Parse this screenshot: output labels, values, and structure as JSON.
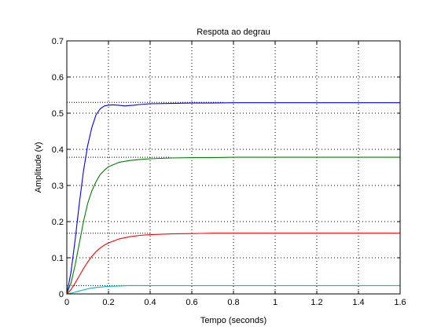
{
  "chart_data": {
    "type": "line",
    "title": "Respota ao degrau",
    "xlabel": "Tempo (seconds)",
    "ylabel": "Amplitude (v)",
    "xlim": [
      0,
      1.6
    ],
    "ylim": [
      0,
      0.7
    ],
    "xticks": [
      "0",
      "0.2",
      "0.4",
      "0.6",
      "0.8",
      "1",
      "1.2",
      "1.4",
      "1.6"
    ],
    "yticks": [
      "0",
      "0.1",
      "0.2",
      "0.3",
      "0.4",
      "0.5",
      "0.6",
      "0.7"
    ],
    "grid": true,
    "series": [
      {
        "color": "#0000ff",
        "x": [
          0,
          0.02,
          0.04,
          0.06,
          0.08,
          0.1,
          0.12,
          0.14,
          0.16,
          0.18,
          0.2,
          0.22,
          0.25,
          0.28,
          0.3,
          0.32,
          0.35,
          0.4,
          0.5,
          0.6,
          0.7,
          0.8,
          1.0,
          1.2,
          1.4,
          1.6
        ],
        "y": [
          0,
          0.06,
          0.15,
          0.25,
          0.34,
          0.41,
          0.46,
          0.495,
          0.512,
          0.52,
          0.522,
          0.523,
          0.522,
          0.52,
          0.521,
          0.522,
          0.524,
          0.526,
          0.527,
          0.528,
          0.528,
          0.529,
          0.529,
          0.529,
          0.529,
          0.529
        ]
      },
      {
        "color": "#008000",
        "x": [
          0,
          0.02,
          0.04,
          0.06,
          0.08,
          0.1,
          0.12,
          0.14,
          0.16,
          0.18,
          0.2,
          0.25,
          0.3,
          0.35,
          0.4,
          0.45,
          0.5,
          0.6,
          0.7,
          0.8,
          1.0,
          1.2,
          1.4,
          1.6
        ],
        "y": [
          0,
          0.03,
          0.08,
          0.14,
          0.2,
          0.25,
          0.285,
          0.31,
          0.33,
          0.342,
          0.352,
          0.364,
          0.369,
          0.372,
          0.374,
          0.375,
          0.376,
          0.377,
          0.377,
          0.378,
          0.378,
          0.378,
          0.378,
          0.378
        ]
      },
      {
        "color": "#ff0000",
        "x": [
          0,
          0.02,
          0.04,
          0.06,
          0.08,
          0.1,
          0.12,
          0.14,
          0.16,
          0.18,
          0.2,
          0.25,
          0.3,
          0.35,
          0.4,
          0.5,
          0.6,
          0.7,
          0.8,
          1.0,
          1.2,
          1.4,
          1.6
        ],
        "y": [
          0,
          0.012,
          0.03,
          0.05,
          0.07,
          0.088,
          0.104,
          0.117,
          0.127,
          0.135,
          0.141,
          0.152,
          0.158,
          0.162,
          0.164,
          0.166,
          0.167,
          0.168,
          0.168,
          0.168,
          0.168,
          0.168,
          0.168
        ]
      },
      {
        "color": "#00bfbf",
        "x": [
          0,
          0.02,
          0.04,
          0.06,
          0.08,
          0.1,
          0.12,
          0.14,
          0.16,
          0.18,
          0.2,
          0.25,
          0.3,
          0.4,
          0.5,
          0.6,
          0.8,
          1.0,
          1.2,
          1.4,
          1.6
        ],
        "y": [
          0,
          0.002,
          0.005,
          0.008,
          0.011,
          0.014,
          0.016,
          0.018,
          0.019,
          0.02,
          0.021,
          0.022,
          0.023,
          0.023,
          0.023,
          0.023,
          0.023,
          0.023,
          0.023,
          0.023,
          0.023
        ]
      }
    ],
    "reference_lines": [
      {
        "y": 0.53,
        "x_end": 0.75
      },
      {
        "y": 0.378,
        "x_end": 0.5
      },
      {
        "y": 0.168,
        "x_end": 0.4
      },
      {
        "y": 0.023,
        "x_end": 0.4
      }
    ]
  }
}
